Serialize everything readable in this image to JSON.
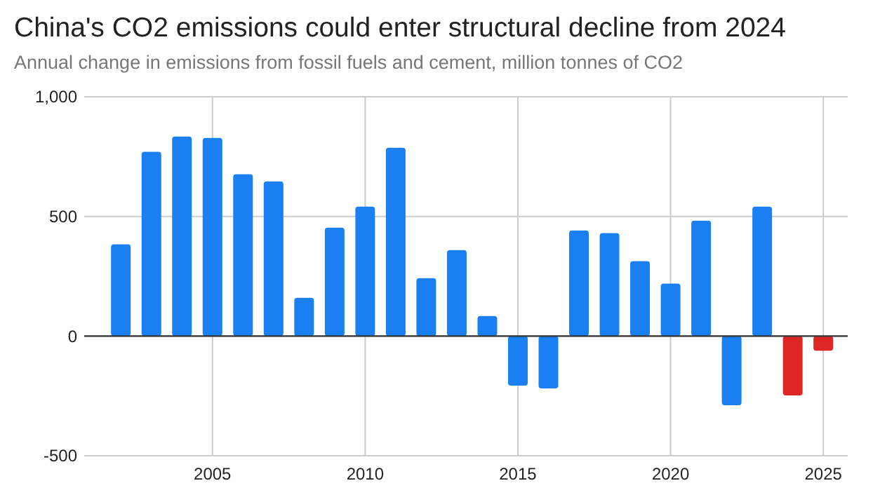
{
  "chart_data": {
    "type": "bar",
    "title": "China's CO2 emissions could enter structural decline from 2024",
    "subtitle": "Annual change in emissions from fossil fuels and cement, million tonnes of CO2",
    "x": [
      2002,
      2003,
      2004,
      2005,
      2006,
      2007,
      2008,
      2009,
      2010,
      2011,
      2012,
      2013,
      2014,
      2015,
      2016,
      2017,
      2018,
      2019,
      2020,
      2021,
      2022,
      2023,
      2024,
      2025
    ],
    "values": [
      383,
      770,
      834,
      828,
      676,
      646,
      160,
      453,
      541,
      787,
      242,
      359,
      84,
      -207,
      -219,
      441,
      430,
      313,
      219,
      482,
      -289,
      541,
      -248,
      -61
    ],
    "colors": [
      "#1a7ff0",
      "#1a7ff0",
      "#1a7ff0",
      "#1a7ff0",
      "#1a7ff0",
      "#1a7ff0",
      "#1a7ff0",
      "#1a7ff0",
      "#1a7ff0",
      "#1a7ff0",
      "#1a7ff0",
      "#1a7ff0",
      "#1a7ff0",
      "#1a7ff0",
      "#1a7ff0",
      "#1a7ff0",
      "#1a7ff0",
      "#1a7ff0",
      "#1a7ff0",
      "#1a7ff0",
      "#1a7ff0",
      "#1a7ff0",
      "#de2626",
      "#de2626"
    ],
    "xlim": [
      2000.8,
      2025.8
    ],
    "xticks": [
      2005,
      2010,
      2015,
      2020,
      2025
    ],
    "ylim": [
      -500,
      1000
    ],
    "yticks": [
      {
        "value": -500,
        "label": "-500"
      },
      {
        "value": 0,
        "label": "0"
      },
      {
        "value": 500,
        "label": "500"
      },
      {
        "value": 1000,
        "label": "1,000"
      }
    ],
    "grid": true
  }
}
